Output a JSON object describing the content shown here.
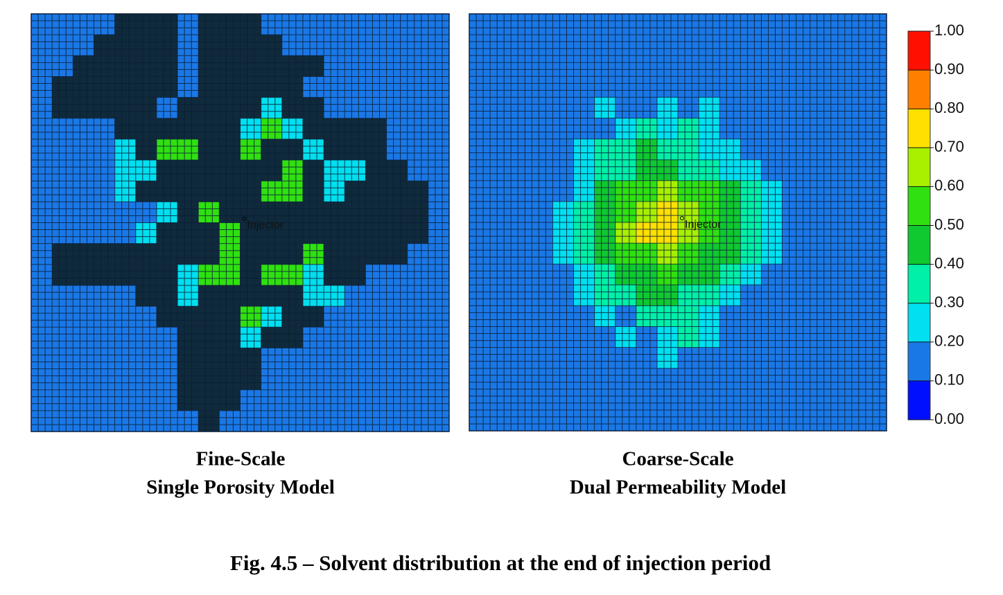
{
  "chart_data": [
    {
      "type": "heatmap",
      "title": "Fine-Scale",
      "subtitle": "Single Porosity Model",
      "well_label": "Injector",
      "null_color": "#0f2a3a",
      "values": [
        [
          0.15,
          0.15,
          0.15,
          0.15,
          null,
          null,
          null,
          0.15,
          null,
          null,
          null,
          0.15,
          0.15,
          0.15,
          0.15,
          0.15,
          0.15,
          0.15,
          0.15,
          0.15
        ],
        [
          0.15,
          0.15,
          0.15,
          null,
          null,
          null,
          null,
          0.15,
          null,
          null,
          null,
          null,
          0.15,
          0.15,
          0.15,
          0.15,
          0.15,
          0.15,
          0.15,
          0.15
        ],
        [
          0.15,
          0.15,
          null,
          null,
          null,
          null,
          null,
          0.15,
          null,
          null,
          null,
          null,
          null,
          null,
          0.15,
          0.15,
          0.15,
          0.15,
          0.15,
          0.15
        ],
        [
          0.15,
          null,
          null,
          null,
          null,
          null,
          null,
          0.15,
          null,
          null,
          null,
          null,
          null,
          0.15,
          0.15,
          0.15,
          0.15,
          0.15,
          0.15,
          0.15
        ],
        [
          0.15,
          null,
          null,
          null,
          null,
          null,
          0.15,
          null,
          null,
          null,
          null,
          0.25,
          null,
          null,
          0.15,
          0.15,
          0.15,
          0.15,
          0.15,
          0.15
        ],
        [
          0.15,
          0.15,
          0.15,
          0.15,
          null,
          null,
          null,
          null,
          null,
          null,
          0.25,
          0.55,
          0.25,
          null,
          null,
          null,
          null,
          0.15,
          0.15,
          0.15
        ],
        [
          0.15,
          0.15,
          0.15,
          0.15,
          0.25,
          null,
          0.55,
          0.55,
          null,
          null,
          0.55,
          null,
          null,
          0.25,
          null,
          null,
          null,
          0.15,
          0.15,
          0.15
        ],
        [
          0.15,
          0.15,
          0.15,
          0.15,
          0.25,
          0.25,
          null,
          null,
          null,
          null,
          null,
          null,
          0.55,
          null,
          0.25,
          0.25,
          null,
          null,
          0.15,
          0.15
        ],
        [
          0.15,
          0.15,
          0.15,
          0.15,
          0.25,
          null,
          null,
          null,
          null,
          null,
          null,
          0.55,
          0.55,
          null,
          0.25,
          null,
          null,
          null,
          null,
          0.15
        ],
        [
          0.15,
          0.15,
          0.15,
          0.15,
          0.15,
          0.15,
          0.25,
          null,
          0.55,
          null,
          null,
          null,
          null,
          null,
          null,
          null,
          null,
          null,
          null,
          0.15
        ],
        [
          0.15,
          0.15,
          0.15,
          0.15,
          0.15,
          0.25,
          null,
          null,
          null,
          0.55,
          null,
          null,
          null,
          null,
          null,
          null,
          null,
          null,
          null,
          0.15
        ],
        [
          0.15,
          null,
          null,
          null,
          null,
          null,
          null,
          null,
          null,
          0.55,
          null,
          null,
          null,
          0.55,
          null,
          null,
          null,
          null,
          0.15,
          0.15
        ],
        [
          0.15,
          null,
          null,
          null,
          null,
          null,
          null,
          0.25,
          0.55,
          0.55,
          null,
          0.55,
          0.55,
          0.25,
          null,
          null,
          0.15,
          0.15,
          0.15,
          0.15
        ],
        [
          0.15,
          0.15,
          0.15,
          0.15,
          0.15,
          null,
          null,
          0.25,
          null,
          null,
          null,
          null,
          null,
          0.25,
          0.25,
          0.15,
          0.15,
          0.15,
          0.15,
          0.15
        ],
        [
          0.15,
          0.15,
          0.15,
          0.15,
          0.15,
          0.15,
          null,
          null,
          null,
          null,
          0.55,
          0.25,
          null,
          null,
          0.15,
          0.15,
          0.15,
          0.15,
          0.15,
          0.15
        ],
        [
          0.15,
          0.15,
          0.15,
          0.15,
          0.15,
          0.15,
          0.15,
          null,
          null,
          null,
          0.25,
          null,
          null,
          0.15,
          0.15,
          0.15,
          0.15,
          0.15,
          0.15,
          0.15
        ],
        [
          0.15,
          0.15,
          0.15,
          0.15,
          0.15,
          0.15,
          0.15,
          null,
          null,
          null,
          null,
          0.15,
          0.15,
          0.15,
          0.15,
          0.15,
          0.15,
          0.15,
          0.15,
          0.15
        ],
        [
          0.15,
          0.15,
          0.15,
          0.15,
          0.15,
          0.15,
          0.15,
          null,
          null,
          null,
          null,
          0.15,
          0.15,
          0.15,
          0.15,
          0.15,
          0.15,
          0.15,
          0.15,
          0.15
        ],
        [
          0.15,
          0.15,
          0.15,
          0.15,
          0.15,
          0.15,
          0.15,
          null,
          null,
          null,
          0.15,
          0.15,
          0.15,
          0.15,
          0.15,
          0.15,
          0.15,
          0.15,
          0.15,
          0.15
        ],
        [
          0.15,
          0.15,
          0.15,
          0.15,
          0.15,
          0.15,
          0.15,
          0.15,
          null,
          0.15,
          0.15,
          0.15,
          0.15,
          0.15,
          0.15,
          0.15,
          0.15,
          0.15,
          0.15,
          0.15
        ]
      ]
    },
    {
      "type": "heatmap",
      "title": "Coarse-Scale",
      "subtitle": "Dual Permeability Model",
      "well_label": "Injector",
      "null_color": "#0f2a3a",
      "values": [
        [
          0.15,
          0.15,
          0.15,
          0.15,
          0.15,
          0.15,
          0.15,
          0.15,
          0.15,
          0.15,
          0.15,
          0.15,
          0.15,
          0.15,
          0.15,
          0.15,
          0.15,
          0.15,
          0.15,
          0.15
        ],
        [
          0.15,
          0.15,
          0.15,
          0.15,
          0.15,
          0.15,
          0.15,
          0.15,
          0.15,
          0.15,
          0.15,
          0.15,
          0.15,
          0.15,
          0.15,
          0.15,
          0.15,
          0.15,
          0.15,
          0.15
        ],
        [
          0.15,
          0.15,
          0.15,
          0.15,
          0.15,
          0.15,
          0.15,
          0.15,
          0.15,
          0.15,
          0.15,
          0.15,
          0.15,
          0.15,
          0.15,
          0.15,
          0.15,
          0.15,
          0.15,
          0.15
        ],
        [
          0.15,
          0.15,
          0.15,
          0.15,
          0.15,
          0.15,
          0.15,
          0.15,
          0.15,
          0.15,
          0.15,
          0.15,
          0.15,
          0.15,
          0.15,
          0.15,
          0.15,
          0.15,
          0.15,
          0.15
        ],
        [
          0.15,
          0.15,
          0.15,
          0.15,
          0.15,
          0.15,
          0.25,
          0.15,
          0.15,
          0.25,
          0.15,
          0.25,
          0.15,
          0.15,
          0.15,
          0.15,
          0.15,
          0.15,
          0.15,
          0.15
        ],
        [
          0.15,
          0.15,
          0.15,
          0.15,
          0.15,
          0.15,
          0.15,
          0.25,
          0.35,
          0.25,
          0.35,
          0.25,
          0.15,
          0.15,
          0.15,
          0.15,
          0.15,
          0.15,
          0.15,
          0.15
        ],
        [
          0.15,
          0.15,
          0.15,
          0.15,
          0.15,
          0.25,
          0.35,
          0.35,
          0.45,
          0.35,
          0.35,
          0.25,
          0.25,
          0.15,
          0.15,
          0.15,
          0.15,
          0.15,
          0.15,
          0.15
        ],
        [
          0.15,
          0.15,
          0.15,
          0.15,
          0.15,
          0.25,
          0.35,
          0.35,
          0.45,
          0.45,
          0.35,
          0.35,
          0.25,
          0.25,
          0.15,
          0.15,
          0.15,
          0.15,
          0.15,
          0.15
        ],
        [
          0.15,
          0.15,
          0.15,
          0.15,
          0.15,
          0.25,
          0.45,
          0.55,
          0.55,
          0.65,
          0.55,
          0.55,
          0.45,
          0.35,
          0.25,
          0.15,
          0.15,
          0.15,
          0.15,
          0.15
        ],
        [
          0.15,
          0.15,
          0.15,
          0.15,
          0.25,
          0.35,
          0.45,
          0.55,
          0.65,
          0.75,
          0.65,
          0.55,
          0.45,
          0.35,
          0.25,
          0.15,
          0.15,
          0.15,
          0.15,
          0.15
        ],
        [
          0.15,
          0.15,
          0.15,
          0.15,
          0.25,
          0.35,
          0.45,
          0.65,
          0.75,
          0.75,
          0.65,
          0.55,
          0.45,
          0.35,
          0.25,
          0.15,
          0.15,
          0.15,
          0.15,
          0.15
        ],
        [
          0.15,
          0.15,
          0.15,
          0.15,
          0.25,
          0.35,
          0.45,
          0.55,
          0.55,
          0.65,
          0.55,
          0.45,
          0.45,
          0.35,
          0.25,
          0.15,
          0.15,
          0.15,
          0.15,
          0.15
        ],
        [
          0.15,
          0.15,
          0.15,
          0.15,
          0.15,
          0.25,
          0.35,
          0.45,
          0.45,
          0.55,
          0.45,
          0.45,
          0.35,
          0.25,
          0.15,
          0.15,
          0.15,
          0.15,
          0.15,
          0.15
        ],
        [
          0.15,
          0.15,
          0.15,
          0.15,
          0.15,
          0.25,
          0.35,
          0.35,
          0.45,
          0.45,
          0.35,
          0.35,
          0.25,
          0.15,
          0.15,
          0.15,
          0.15,
          0.15,
          0.15,
          0.15
        ],
        [
          0.15,
          0.15,
          0.15,
          0.15,
          0.15,
          0.15,
          0.25,
          0.15,
          0.35,
          0.35,
          0.35,
          0.25,
          0.15,
          0.15,
          0.15,
          0.15,
          0.15,
          0.15,
          0.15,
          0.15
        ],
        [
          0.15,
          0.15,
          0.15,
          0.15,
          0.15,
          0.15,
          0.15,
          0.25,
          0.15,
          0.25,
          0.35,
          0.25,
          0.15,
          0.15,
          0.15,
          0.15,
          0.15,
          0.15,
          0.15,
          0.15
        ],
        [
          0.15,
          0.15,
          0.15,
          0.15,
          0.15,
          0.15,
          0.15,
          0.15,
          0.15,
          0.25,
          0.15,
          0.15,
          0.15,
          0.15,
          0.15,
          0.15,
          0.15,
          0.15,
          0.15,
          0.15
        ],
        [
          0.15,
          0.15,
          0.15,
          0.15,
          0.15,
          0.15,
          0.15,
          0.15,
          0.15,
          0.15,
          0.15,
          0.15,
          0.15,
          0.15,
          0.15,
          0.15,
          0.15,
          0.15,
          0.15,
          0.15
        ],
        [
          0.15,
          0.15,
          0.15,
          0.15,
          0.15,
          0.15,
          0.15,
          0.15,
          0.15,
          0.15,
          0.15,
          0.15,
          0.15,
          0.15,
          0.15,
          0.15,
          0.15,
          0.15,
          0.15,
          0.15
        ],
        [
          0.15,
          0.15,
          0.15,
          0.15,
          0.15,
          0.15,
          0.15,
          0.15,
          0.15,
          0.15,
          0.15,
          0.15,
          0.15,
          0.15,
          0.15,
          0.15,
          0.15,
          0.15,
          0.15,
          0.15
        ]
      ]
    }
  ],
  "colorbar": {
    "ylim": [
      0,
      1
    ],
    "yticks": [
      {
        "value": 0,
        "label": "0.00"
      },
      {
        "value": 0.1,
        "label": "0.10"
      },
      {
        "value": 0.2,
        "label": "0.20"
      },
      {
        "value": 0.3,
        "label": "0.30"
      },
      {
        "value": 0.4,
        "label": "0.40"
      },
      {
        "value": 0.5,
        "label": "0.50"
      },
      {
        "value": 0.6,
        "label": "0.60"
      },
      {
        "value": 0.7,
        "label": "0.70"
      },
      {
        "value": 0.8,
        "label": "0.80"
      },
      {
        "value": 0.9,
        "label": "0.90"
      },
      {
        "value": 1,
        "label": "1.00"
      }
    ],
    "colors": [
      "#0010ff",
      "#1a78e6",
      "#00e0f0",
      "#00f0a8",
      "#10c830",
      "#30e010",
      "#a8f000",
      "#ffe000",
      "#ff8000",
      "#ff1000"
    ]
  },
  "caption": "Fig. 4.5 – Solvent distribution at the end of injection period"
}
